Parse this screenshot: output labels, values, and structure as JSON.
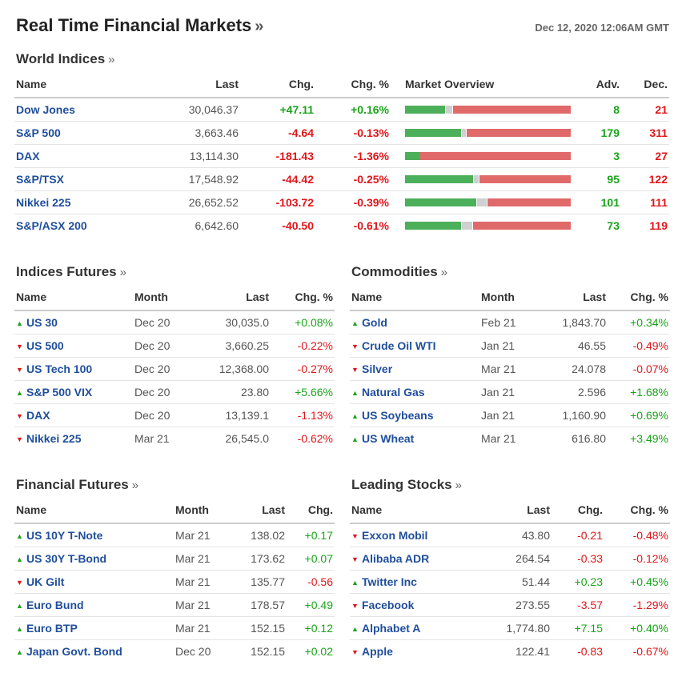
{
  "header": {
    "title": "Real Time Financial Markets",
    "raquo": "»",
    "timestamp": "Dec 12, 2020 12:06AM GMT"
  },
  "colors": {
    "up": "#1aa31a",
    "down": "#e0161a",
    "link": "#1f4e9c",
    "bar_adv": "#4caf5a",
    "bar_dec": "#e0696a",
    "bar_neutral": "#d0d0d0"
  },
  "icons": {
    "up": "triangle-up-icon",
    "down": "triangle-down-icon"
  },
  "world_indices": {
    "title": "World Indices",
    "headers": {
      "name": "Name",
      "last": "Last",
      "chg": "Chg.",
      "chg_pct": "Chg. %",
      "overview": "Market Overview",
      "adv": "Adv.",
      "dec": "Dec."
    },
    "rows": [
      {
        "name": "Dow Jones",
        "last": "30,046.37",
        "chg": "+47.11",
        "chg_pct": "+0.16%",
        "dir": "up",
        "adv": "8",
        "dec": "21",
        "adv_share": 0.24,
        "unch_share": 0.04
      },
      {
        "name": "S&P 500",
        "last": "3,663.46",
        "chg": "-4.64",
        "chg_pct": "-0.13%",
        "dir": "down",
        "adv": "179",
        "dec": "311",
        "adv_share": 0.34,
        "unch_share": 0.02
      },
      {
        "name": "DAX",
        "last": "13,114.30",
        "chg": "-181.43",
        "chg_pct": "-1.36%",
        "dir": "down",
        "adv": "3",
        "dec": "27",
        "adv_share": 0.09,
        "unch_share": 0.0
      },
      {
        "name": "S&P/TSX",
        "last": "17,548.92",
        "chg": "-44.42",
        "chg_pct": "-0.25%",
        "dir": "down",
        "adv": "95",
        "dec": "122",
        "adv_share": 0.41,
        "unch_share": 0.03
      },
      {
        "name": "Nikkei 225",
        "last": "26,652.52",
        "chg": "-103.72",
        "chg_pct": "-0.39%",
        "dir": "down",
        "adv": "101",
        "dec": "111",
        "adv_share": 0.43,
        "unch_share": 0.06
      },
      {
        "name": "S&P/ASX 200",
        "last": "6,642.60",
        "chg": "-40.50",
        "chg_pct": "-0.61%",
        "dir": "down",
        "adv": "73",
        "dec": "119",
        "adv_share": 0.34,
        "unch_share": 0.06
      }
    ]
  },
  "indices_futures": {
    "title": "Indices Futures",
    "headers": {
      "name": "Name",
      "month": "Month",
      "last": "Last",
      "chg_pct": "Chg. %"
    },
    "rows": [
      {
        "name": "US 30",
        "month": "Dec 20",
        "last": "30,035.0",
        "chg_pct": "+0.08%",
        "dir": "up"
      },
      {
        "name": "US 500",
        "month": "Dec 20",
        "last": "3,660.25",
        "chg_pct": "-0.22%",
        "dir": "down"
      },
      {
        "name": "US Tech 100",
        "month": "Dec 20",
        "last": "12,368.00",
        "chg_pct": "-0.27%",
        "dir": "down"
      },
      {
        "name": "S&P 500 VIX",
        "month": "Dec 20",
        "last": "23.80",
        "chg_pct": "+5.66%",
        "dir": "up"
      },
      {
        "name": "DAX",
        "month": "Dec 20",
        "last": "13,139.1",
        "chg_pct": "-1.13%",
        "dir": "down"
      },
      {
        "name": "Nikkei 225",
        "month": "Mar 21",
        "last": "26,545.0",
        "chg_pct": "-0.62%",
        "dir": "down"
      }
    ]
  },
  "commodities": {
    "title": "Commodities",
    "headers": {
      "name": "Name",
      "month": "Month",
      "last": "Last",
      "chg_pct": "Chg. %"
    },
    "rows": [
      {
        "name": "Gold",
        "month": "Feb 21",
        "last": "1,843.70",
        "chg_pct": "+0.34%",
        "dir": "up"
      },
      {
        "name": "Crude Oil WTI",
        "month": "Jan 21",
        "last": "46.55",
        "chg_pct": "-0.49%",
        "dir": "down"
      },
      {
        "name": "Silver",
        "month": "Mar 21",
        "last": "24.078",
        "chg_pct": "-0.07%",
        "dir": "down"
      },
      {
        "name": "Natural Gas",
        "month": "Jan 21",
        "last": "2.596",
        "chg_pct": "+1.68%",
        "dir": "up"
      },
      {
        "name": "US Soybeans",
        "month": "Jan 21",
        "last": "1,160.90",
        "chg_pct": "+0.69%",
        "dir": "up"
      },
      {
        "name": "US Wheat",
        "month": "Mar 21",
        "last": "616.80",
        "chg_pct": "+3.49%",
        "dir": "up"
      }
    ]
  },
  "financial_futures": {
    "title": "Financial Futures",
    "headers": {
      "name": "Name",
      "month": "Month",
      "last": "Last",
      "chg": "Chg."
    },
    "rows": [
      {
        "name": "US 10Y T-Note",
        "month": "Mar 21",
        "last": "138.02",
        "chg": "+0.17",
        "dir": "up"
      },
      {
        "name": "US 30Y T-Bond",
        "month": "Mar 21",
        "last": "173.62",
        "chg": "+0.07",
        "dir": "up"
      },
      {
        "name": "UK Gilt",
        "month": "Mar 21",
        "last": "135.77",
        "chg": "-0.56",
        "dir": "down"
      },
      {
        "name": "Euro Bund",
        "month": "Mar 21",
        "last": "178.57",
        "chg": "+0.49",
        "dir": "up"
      },
      {
        "name": "Euro BTP",
        "month": "Mar 21",
        "last": "152.15",
        "chg": "+0.12",
        "dir": "up"
      },
      {
        "name": "Japan Govt. Bond",
        "month": "Dec 20",
        "last": "152.15",
        "chg": "+0.02",
        "dir": "up"
      }
    ]
  },
  "leading_stocks": {
    "title": "Leading Stocks",
    "headers": {
      "name": "Name",
      "last": "Last",
      "chg": "Chg.",
      "chg_pct": "Chg. %"
    },
    "rows": [
      {
        "name": "Exxon Mobil",
        "last": "43.80",
        "chg": "-0.21",
        "chg_pct": "-0.48%",
        "dir": "down"
      },
      {
        "name": "Alibaba ADR",
        "last": "264.54",
        "chg": "-0.33",
        "chg_pct": "-0.12%",
        "dir": "down"
      },
      {
        "name": "Twitter Inc",
        "last": "51.44",
        "chg": "+0.23",
        "chg_pct": "+0.45%",
        "dir": "up"
      },
      {
        "name": "Facebook",
        "last": "273.55",
        "chg": "-3.57",
        "chg_pct": "-1.29%",
        "dir": "down"
      },
      {
        "name": "Alphabet A",
        "last": "1,774.80",
        "chg": "+7.15",
        "chg_pct": "+0.40%",
        "dir": "up"
      },
      {
        "name": "Apple",
        "last": "122.41",
        "chg": "-0.83",
        "chg_pct": "-0.67%",
        "dir": "down"
      }
    ]
  }
}
